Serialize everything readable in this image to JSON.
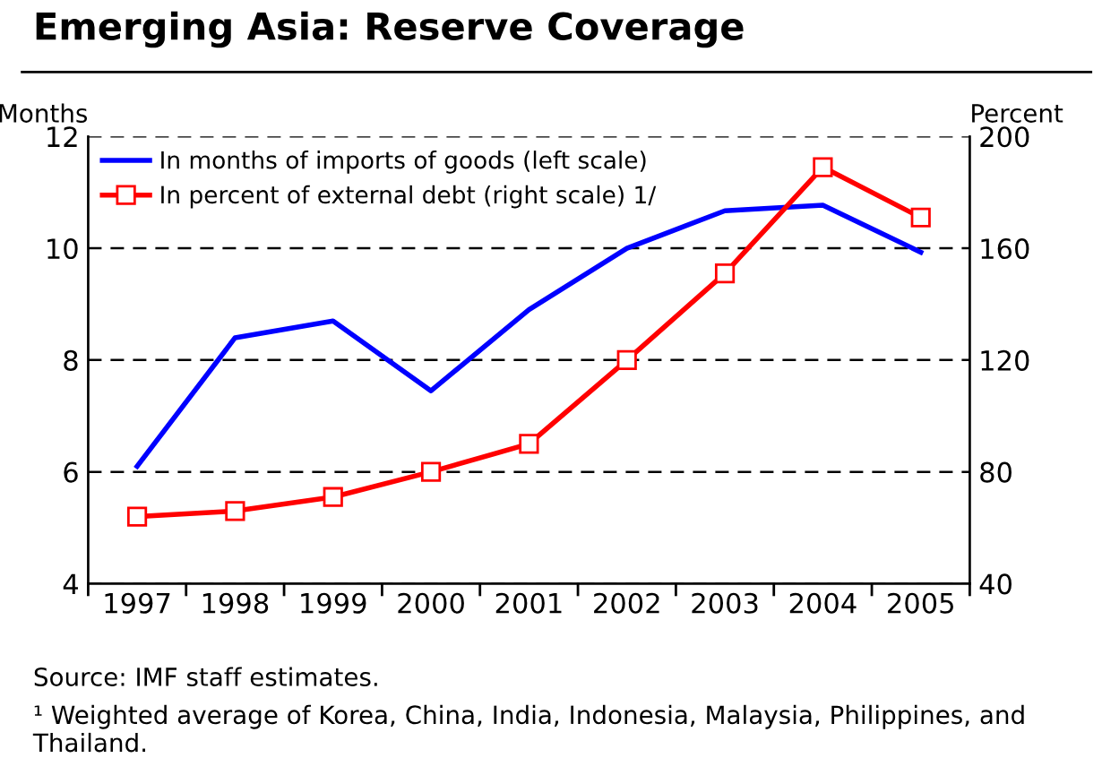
{
  "chart_data": {
    "type": "line",
    "title": "Emerging Asia: Reserve Coverage",
    "ylabel": "Months",
    "y2label": "Percent",
    "categories": [
      "1997",
      "1998",
      "1999",
      "2000",
      "2001",
      "2002",
      "2003",
      "2004",
      "2005"
    ],
    "series": [
      {
        "name": "In months of imports of goods (left scale)",
        "color": "#0000ff",
        "values": [
          6.1,
          8.4,
          8.7,
          7.45,
          8.9,
          10.0,
          10.67,
          10.77,
          9.93
        ],
        "marker": "none"
      },
      {
        "name": "In percent of external debt (right scale) 1/",
        "color": "#ff0000",
        "axis": "y2",
        "values": [
          64,
          66,
          71,
          80,
          90,
          120,
          151,
          189,
          171
        ],
        "marker": "square"
      }
    ],
    "ylim": [
      4,
      12
    ],
    "yticks": [
      4,
      6,
      8,
      10,
      12
    ],
    "y2lim": [
      40,
      200
    ],
    "y2ticks": [
      40,
      80,
      120,
      160,
      200
    ],
    "grid": "y",
    "legend": "top left",
    "annotations": [
      "Source: IMF staff estimates.",
      "¹ Weighted average of Korea, China, India, Indonesia, Malaysia, Philippines, and Thailand."
    ]
  }
}
